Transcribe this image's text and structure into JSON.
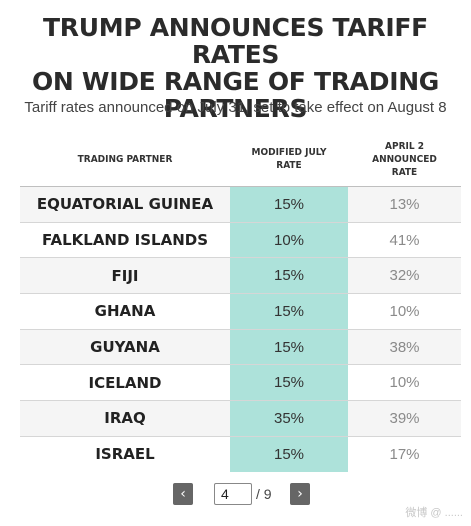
{
  "header": {
    "title_lines": [
      "TRUMP ANNOUNCES TARIFF RATES",
      "ON WIDE RANGE OF TRADING",
      "PARTNERS"
    ],
    "subtitle": "Tariff rates announced on July 31, set to take effect on August 8"
  },
  "chart_data": {
    "type": "table",
    "columns": [
      "TRADING PARTNER",
      "MODIFIED JULY RATE",
      "APRIL 2 ANNOUNCED RATE"
    ],
    "column_header_lines": [
      [
        "TRADING PARTNER"
      ],
      [
        "MODIFIED JULY",
        "RATE"
      ],
      [
        "APRIL 2",
        "ANNOUNCED",
        "RATE"
      ]
    ],
    "rows": [
      {
        "partner": "EQUATORIAL GUINEA",
        "modified": "15%",
        "april": "13%"
      },
      {
        "partner": "FALKLAND ISLANDS",
        "modified": "10%",
        "april": "41%"
      },
      {
        "partner": "FIJI",
        "modified": "15%",
        "april": "32%"
      },
      {
        "partner": "GHANA",
        "modified": "15%",
        "april": "10%"
      },
      {
        "partner": "GUYANA",
        "modified": "15%",
        "april": "38%"
      },
      {
        "partner": "ICELAND",
        "modified": "15%",
        "april": "10%"
      },
      {
        "partner": "IRAQ",
        "modified": "35%",
        "april": "39%"
      },
      {
        "partner": "ISRAEL",
        "modified": "15%",
        "april": "17%"
      }
    ],
    "highlight_column_color": "#ade2da"
  },
  "pager": {
    "prev_symbol": "‹",
    "next_symbol": "›",
    "current_page": "4",
    "total_label": "/ 9"
  },
  "watermark": "微博 @ ......"
}
